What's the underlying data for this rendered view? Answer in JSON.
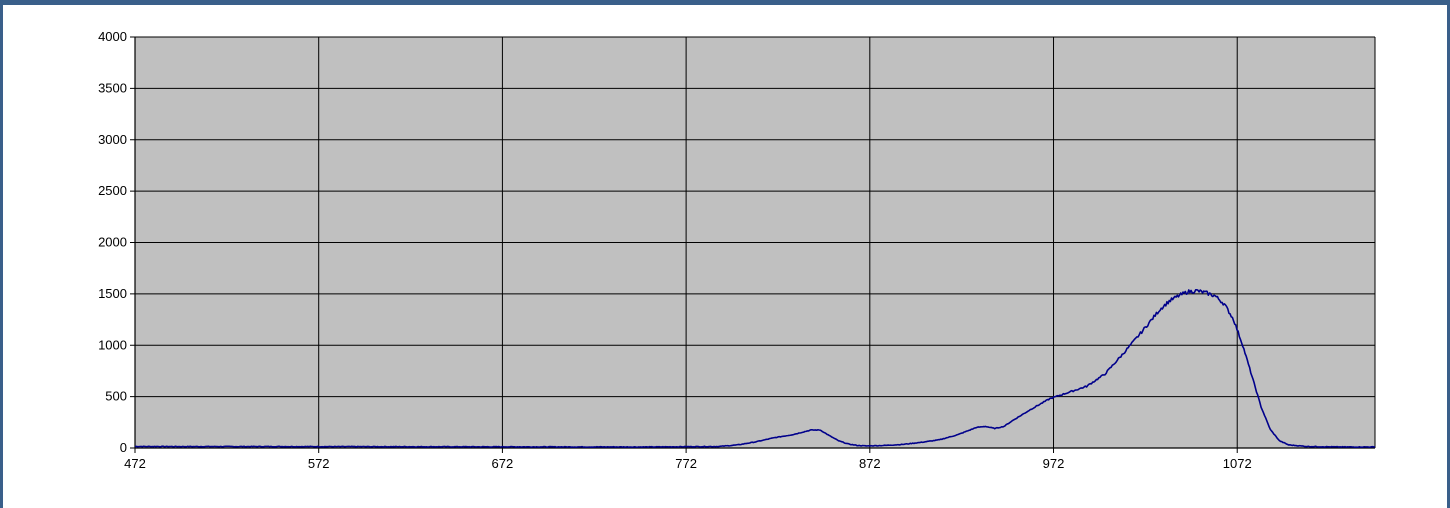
{
  "chart_data": {
    "type": "line",
    "title": "",
    "xlabel": "",
    "ylabel": "",
    "xlim": [
      472,
      1147
    ],
    "ylim": [
      0,
      4000
    ],
    "grid": true,
    "x_ticks": [
      "472",
      "572",
      "672",
      "772",
      "872",
      "972",
      "1072"
    ],
    "y_ticks": [
      "0",
      "500",
      "1000",
      "1500",
      "2000",
      "2500",
      "3000",
      "3500",
      "4000"
    ],
    "series": [
      {
        "color": "#00008b",
        "x": [
          472,
          500,
          550,
          600,
          650,
          700,
          750,
          790,
          800,
          810,
          820,
          830,
          840,
          845,
          850,
          855,
          860,
          865,
          870,
          880,
          890,
          900,
          910,
          920,
          930,
          935,
          940,
          945,
          950,
          960,
          970,
          980,
          990,
          1000,
          1010,
          1020,
          1030,
          1035,
          1040,
          1045,
          1050,
          1055,
          1060,
          1065,
          1070,
          1075,
          1080,
          1085,
          1090,
          1095,
          1100,
          1110,
          1120,
          1130,
          1147
        ],
        "y": [
          15,
          14,
          14,
          13,
          12,
          11,
          10,
          15,
          30,
          60,
          100,
          130,
          175,
          175,
          120,
          70,
          40,
          25,
          20,
          25,
          35,
          55,
          80,
          130,
          200,
          210,
          190,
          210,
          270,
          380,
          480,
          540,
          600,
          720,
          920,
          1130,
          1350,
          1430,
          1480,
          1520,
          1530,
          1510,
          1480,
          1400,
          1250,
          1000,
          700,
          400,
          180,
          70,
          30,
          15,
          12,
          10,
          10
        ]
      }
    ]
  },
  "colors": {
    "plot_background": "#c0c0c0",
    "grid": "#000000",
    "frame_border": "#3a5f8a",
    "series": "#00008b"
  }
}
